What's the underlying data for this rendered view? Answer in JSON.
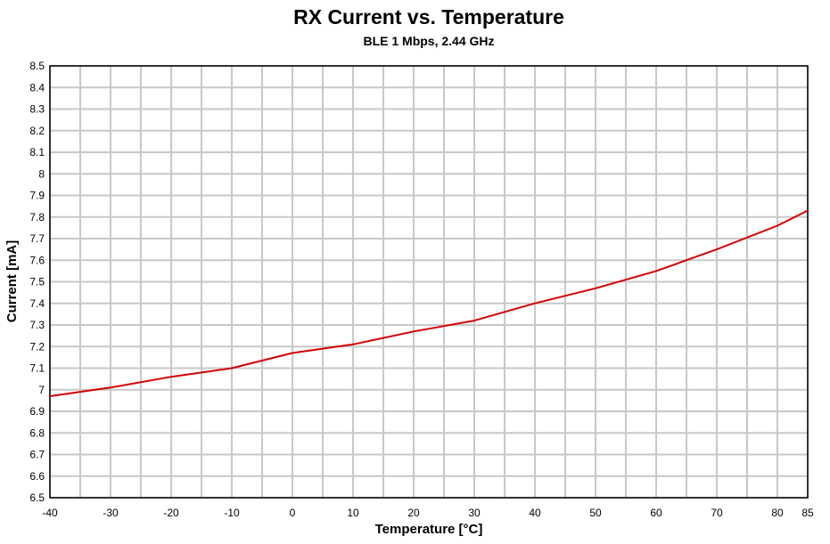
{
  "chart_data": {
    "type": "line",
    "title": "RX Current vs. Temperature",
    "subtitle": "BLE 1 Mbps, 2.44 GHz",
    "xlabel": "Temperature [°C]",
    "ylabel": "Current [mA]",
    "xlim": [
      -40,
      85
    ],
    "ylim": [
      6.5,
      8.5
    ],
    "x_ticks": [
      -40,
      -30,
      -20,
      -10,
      0,
      10,
      20,
      30,
      40,
      50,
      60,
      70,
      80,
      85
    ],
    "y_ticks": [
      6.5,
      6.6,
      6.7,
      6.8,
      6.9,
      7,
      7.1,
      7.2,
      7.3,
      7.4,
      7.5,
      7.6,
      7.7,
      7.8,
      7.9,
      8,
      8.1,
      8.2,
      8.3,
      8.4,
      8.5
    ],
    "grid": true,
    "series": [
      {
        "name": "RX Current",
        "color": "#d40000",
        "x": [
          -40,
          -30,
          -20,
          -10,
          0,
          10,
          20,
          30,
          40,
          50,
          60,
          70,
          80,
          85
        ],
        "values": [
          6.97,
          7.01,
          7.06,
          7.1,
          7.17,
          7.21,
          7.27,
          7.32,
          7.4,
          7.47,
          7.55,
          7.65,
          7.76,
          7.83
        ]
      }
    ]
  }
}
